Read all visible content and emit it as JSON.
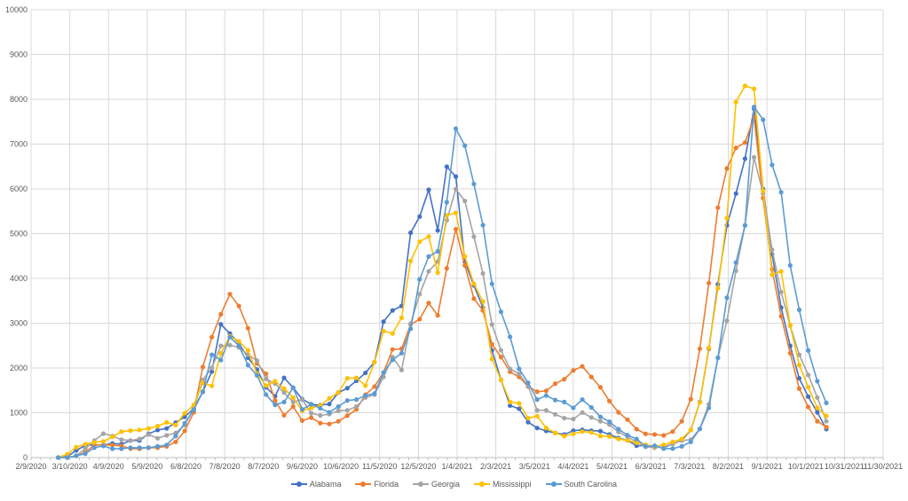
{
  "chart_data": {
    "type": "line",
    "title": "",
    "xlabel": "",
    "ylabel": "",
    "ylim": [
      0,
      10000
    ],
    "y_ticks": [
      "0",
      "1000",
      "2000",
      "3000",
      "4000",
      "5000",
      "6000",
      "7000",
      "8000",
      "9000",
      "10000"
    ],
    "x_range": [
      "2/9/2020",
      "11/30/2021"
    ],
    "x_ticks": [
      "2/9/2020",
      "3/10/2020",
      "4/9/2020",
      "5/9/2020",
      "6/8/2020",
      "7/8/2020",
      "8/7/2020",
      "9/6/2020",
      "10/6/2020",
      "11/5/2020",
      "12/5/2020",
      "1/4/2021",
      "2/3/2021",
      "3/5/2021",
      "4/4/2021",
      "5/4/2021",
      "6/3/2021",
      "7/3/2021",
      "8/2/2021",
      "9/1/2021",
      "10/1/2021",
      "10/31/2021",
      "11/30/2021"
    ],
    "grid": true,
    "legend_position": "bottom",
    "x_start_date": "3/1/2020",
    "x_interval_days": 7,
    "series": [
      {
        "name": "Alabama",
        "color": "#4472C4",
        "values": [
          0,
          20,
          160,
          270,
          280,
          280,
          315,
          300,
          380,
          380,
          530,
          615,
          650,
          780,
          910,
          1090,
          1470,
          1920,
          2975,
          2770,
          2550,
          2230,
          1965,
          1570,
          1370,
          1780,
          1560,
          1305,
          1190,
          1170,
          1195,
          1450,
          1550,
          1715,
          1890,
          2130,
          3035,
          3285,
          3385,
          5020,
          5380,
          5980,
          5070,
          6495,
          6275,
          4375,
          3845,
          3350,
          2395,
          1735,
          1160,
          1090,
          790,
          660,
          595,
          550,
          515,
          600,
          620,
          600,
          590,
          515,
          435,
          380,
          265,
          265,
          240,
          220,
          305,
          380,
          615,
          1240,
          2430,
          3870,
          5185,
          5895,
          6675,
          7790,
          5995,
          4540,
          3350,
          2495,
          1770,
          1360,
          1010,
          635
        ]
      },
      {
        "name": "Florida",
        "color": "#ED7D31",
        "values": [
          0,
          0,
          40,
          120,
          280,
          280,
          280,
          260,
          200,
          196,
          220,
          220,
          250,
          350,
          595,
          1010,
          2020,
          2690,
          3200,
          3650,
          3385,
          2890,
          2100,
          1870,
          1275,
          945,
          1140,
          825,
          890,
          770,
          750,
          810,
          935,
          1075,
          1405,
          1585,
          1900,
          2415,
          2430,
          2970,
          3090,
          3450,
          3175,
          4225,
          5100,
          4290,
          3550,
          3285,
          2530,
          2245,
          1915,
          1800,
          1585,
          1470,
          1490,
          1650,
          1750,
          1945,
          2035,
          1800,
          1570,
          1260,
          1010,
          845,
          635,
          530,
          515,
          495,
          580,
          810,
          1305,
          2430,
          3895,
          5580,
          6455,
          6915,
          7035,
          7600,
          5795,
          4200,
          3155,
          2330,
          1540,
          1130,
          810,
          680
        ]
      },
      {
        "name": "Georgia",
        "color": "#A5A5A5",
        "values": [
          0,
          0,
          40,
          200,
          380,
          535,
          480,
          400,
          380,
          415,
          515,
          430,
          495,
          550,
          725,
          1095,
          1735,
          2000,
          2495,
          2510,
          2460,
          2295,
          2165,
          1755,
          1650,
          1450,
          1240,
          1295,
          990,
          940,
          970,
          1045,
          1055,
          1140,
          1340,
          1405,
          1800,
          2245,
          1955,
          2990,
          3650,
          4160,
          4375,
          5300,
          5995,
          5730,
          4935,
          4110,
          2970,
          2395,
          1980,
          1870,
          1600,
          1055,
          1055,
          965,
          880,
          860,
          1005,
          895,
          810,
          735,
          570,
          460,
          350,
          240,
          220,
          240,
          305,
          380,
          400,
          640,
          1190,
          2230,
          3055,
          4170,
          5185,
          6705,
          5895,
          4640,
          3695,
          2945,
          2295,
          1845,
          1340,
          810
        ]
      },
      {
        "name": "Mississippi",
        "color": "#FFC000",
        "values": [
          0,
          73,
          230,
          300,
          340,
          360,
          460,
          580,
          600,
          615,
          650,
          700,
          785,
          725,
          990,
          1175,
          1670,
          1600,
          2330,
          2710,
          2595,
          2395,
          1870,
          1605,
          1705,
          1540,
          1340,
          1045,
          1110,
          1160,
          1320,
          1450,
          1770,
          1780,
          1605,
          2130,
          2825,
          2770,
          3120,
          4390,
          4820,
          4935,
          4125,
          5410,
          5465,
          4490,
          3880,
          3485,
          2200,
          1735,
          1240,
          1210,
          880,
          925,
          660,
          550,
          480,
          530,
          580,
          560,
          480,
          470,
          415,
          380,
          330,
          285,
          250,
          285,
          350,
          415,
          615,
          1230,
          2450,
          3780,
          5345,
          7940,
          8300,
          8235,
          5960,
          4080,
          4160,
          2955,
          2065,
          1570,
          1110,
          930
        ]
      },
      {
        "name": "South Carolina",
        "color": "#5B9BD5",
        "values": [
          0,
          0,
          40,
          85,
          220,
          260,
          196,
          196,
          220,
          220,
          220,
          250,
          280,
          480,
          765,
          1065,
          1465,
          2295,
          2175,
          2690,
          2495,
          2065,
          1835,
          1405,
          1175,
          1240,
          1560,
          1075,
          1190,
          1100,
          1010,
          1140,
          1275,
          1295,
          1385,
          1430,
          1900,
          2180,
          2330,
          2875,
          3980,
          4490,
          4605,
          5700,
          7345,
          6965,
          6110,
          5190,
          3880,
          3255,
          2695,
          1980,
          1670,
          1295,
          1385,
          1285,
          1240,
          1110,
          1295,
          1120,
          910,
          800,
          635,
          500,
          415,
          250,
          265,
          200,
          200,
          250,
          350,
          640,
          1110,
          2225,
          3570,
          4355,
          5185,
          7830,
          7545,
          6535,
          5925,
          4290,
          3300,
          2390,
          1705,
          1220
        ]
      }
    ]
  }
}
